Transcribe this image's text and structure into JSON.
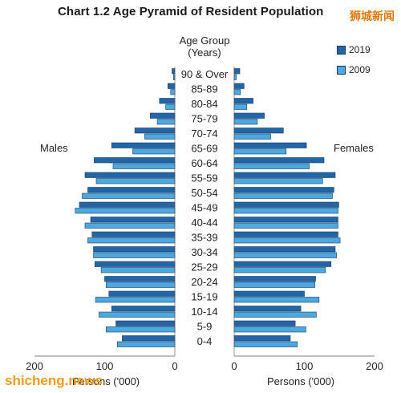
{
  "title": "Chart 1.2  Age Pyramid of Resident Population",
  "watermarks": {
    "top": "狮城新闻",
    "bottom": "shicheng.news"
  },
  "colors": {
    "y2019": "#2166a8",
    "y2009": "#4ca9e0",
    "outline": "#1d3a5c"
  },
  "chart_data": {
    "type": "bar",
    "orientation": "horizontal-pyramid",
    "center_header": [
      "Age Group",
      "(Years)"
    ],
    "left_label": "Males",
    "right_label": "Females",
    "xlabel_left": "Persons ('000)",
    "xlabel_right": "Persons ('000)",
    "xlim": [
      0,
      200
    ],
    "ticks": [
      200,
      100,
      0
    ],
    "legend": [
      "2019",
      "2009"
    ],
    "categories": [
      "90 & Over",
      "85-89",
      "80-84",
      "75-79",
      "70-74",
      "65-69",
      "60-64",
      "55-59",
      "50-54",
      "45-49",
      "40-44",
      "35-39",
      "30-34",
      "25-29",
      "20-24",
      "15-19",
      "10-14",
      "5-9",
      "0-4"
    ],
    "series": [
      {
        "name": "2019",
        "side": "males",
        "values": [
          4,
          10,
          22,
          35,
          57,
          90,
          115,
          128,
          124,
          136,
          120,
          118,
          116,
          114,
          100,
          94,
          90,
          84,
          75
        ]
      },
      {
        "name": "2009",
        "side": "males",
        "values": [
          2,
          6,
          13,
          25,
          43,
          60,
          88,
          112,
          132,
          142,
          128,
          124,
          116,
          105,
          98,
          113,
          108,
          98,
          82
        ]
      },
      {
        "name": "2019",
        "side": "females",
        "values": [
          8,
          14,
          27,
          43,
          70,
          103,
          128,
          144,
          142,
          149,
          148,
          148,
          144,
          138,
          116,
          100,
          95,
          87,
          80
        ]
      },
      {
        "name": "2009",
        "side": "females",
        "values": [
          3,
          9,
          18,
          33,
          52,
          74,
          107,
          126,
          140,
          148,
          148,
          151,
          146,
          130,
          115,
          121,
          117,
          102,
          90
        ]
      }
    ]
  }
}
